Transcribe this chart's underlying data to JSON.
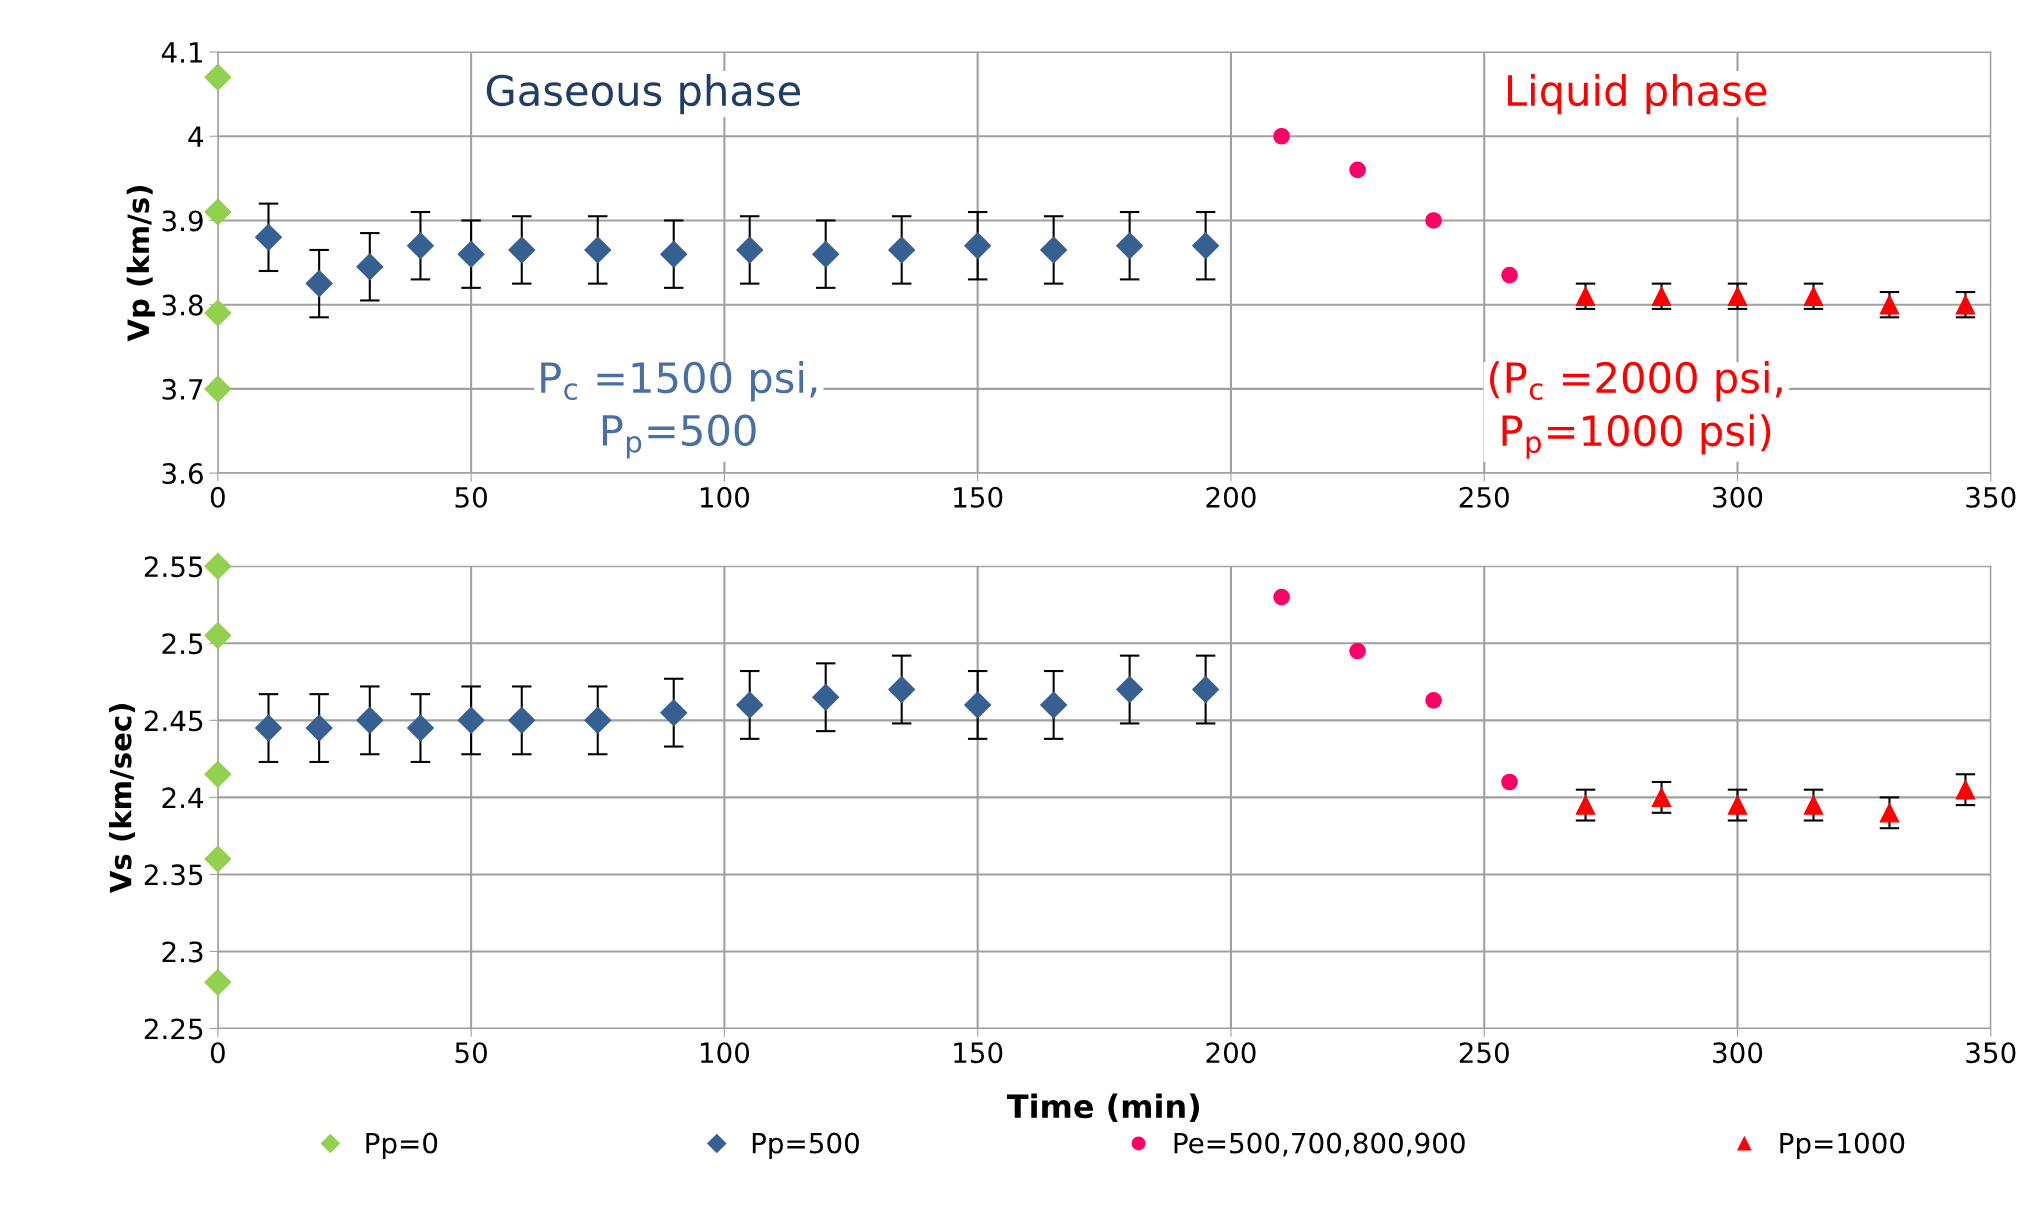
{
  "chart_data": [
    {
      "type": "scatter",
      "ylabel": "Vp (km/s)",
      "xlim": [
        0,
        350
      ],
      "xticks": [
        0,
        50,
        100,
        150,
        200,
        250,
        300,
        350
      ],
      "ylim": [
        3.6,
        4.1
      ],
      "yticks": [
        3.6,
        3.7,
        3.8,
        3.9,
        4,
        4.1
      ],
      "grid": true,
      "legend": false,
      "annotations": [
        "Gaseous phase",
        "P$_{c}$ =1500 psi,\nP$_{p}$=500",
        "Liquid phase",
        "(P$_{c}$ =2000 psi,\nP$_{p}$=1000 psi)"
      ],
      "series": [
        {
          "color": "#92d050",
          "marker": "diamond",
          "x": [
            0,
            0,
            0,
            0
          ],
          "values": [
            4.07,
            3.91,
            3.79,
            3.7
          ]
        },
        {
          "color": "#376092",
          "marker": "diamond",
          "x": [
            10,
            20,
            30,
            40,
            50,
            60,
            75,
            90,
            105,
            120,
            135,
            150,
            165,
            180,
            195
          ],
          "values": [
            3.88,
            3.825,
            3.845,
            3.87,
            3.86,
            3.865,
            3.865,
            3.86,
            3.865,
            3.86,
            3.865,
            3.87,
            3.865,
            3.87,
            3.87
          ],
          "errors": [
            0.04,
            0.04,
            0.04,
            0.04,
            0.04,
            0.04,
            0.04,
            0.04,
            0.04,
            0.04,
            0.04,
            0.04,
            0.04,
            0.04,
            0.04
          ]
        },
        {
          "color": "#ff0066",
          "marker": "circle",
          "x": [
            210,
            225,
            240,
            255
          ],
          "values": [
            4.0,
            3.96,
            3.9,
            3.835
          ]
        },
        {
          "color": "#ff0000",
          "marker": "triangle",
          "x": [
            270,
            285,
            300,
            315,
            330,
            345
          ],
          "values": [
            3.81,
            3.81,
            3.81,
            3.81,
            3.8,
            3.8
          ],
          "errors": [
            0.015,
            0.015,
            0.015,
            0.015,
            0.015,
            0.015
          ]
        }
      ]
    },
    {
      "type": "scatter",
      "xlabel": "Time (min)",
      "ylabel": "Vs (km/sec)",
      "xlim": [
        0,
        350
      ],
      "xticks": [
        0,
        50,
        100,
        150,
        200,
        250,
        300,
        350
      ],
      "ylim": [
        2.25,
        2.55
      ],
      "yticks": [
        2.25,
        2.3,
        2.35,
        2.4,
        2.45,
        2.5,
        2.55
      ],
      "grid": true,
      "legend": "bottom",
      "series": [
        {
          "name": "Pp=0",
          "color": "#92d050",
          "marker": "diamond",
          "x": [
            0,
            0,
            0,
            0,
            0
          ],
          "values": [
            2.55,
            2.505,
            2.415,
            2.36,
            2.28
          ]
        },
        {
          "name": "Pp=500",
          "color": "#376092",
          "marker": "diamond",
          "x": [
            10,
            20,
            30,
            40,
            50,
            60,
            75,
            90,
            105,
            120,
            135,
            150,
            165,
            180,
            195
          ],
          "values": [
            2.445,
            2.445,
            2.45,
            2.445,
            2.45,
            2.45,
            2.45,
            2.455,
            2.46,
            2.465,
            2.47,
            2.46,
            2.46,
            2.47,
            2.47
          ],
          "errors": [
            0.022,
            0.022,
            0.022,
            0.022,
            0.022,
            0.022,
            0.022,
            0.022,
            0.022,
            0.022,
            0.022,
            0.022,
            0.022,
            0.022,
            0.022
          ]
        },
        {
          "name": "Pe=500,700,800,900",
          "color": "#ff0066",
          "marker": "circle",
          "x": [
            210,
            225,
            240,
            255
          ],
          "values": [
            2.53,
            2.495,
            2.463,
            2.41
          ]
        },
        {
          "name": "Pp=1000",
          "color": "#ff0000",
          "marker": "triangle",
          "x": [
            270,
            285,
            300,
            315,
            330,
            345
          ],
          "values": [
            2.395,
            2.4,
            2.395,
            2.395,
            2.39,
            2.405
          ],
          "errors": [
            0.01,
            0.01,
            0.01,
            0.01,
            0.01,
            0.01
          ]
        }
      ]
    }
  ]
}
